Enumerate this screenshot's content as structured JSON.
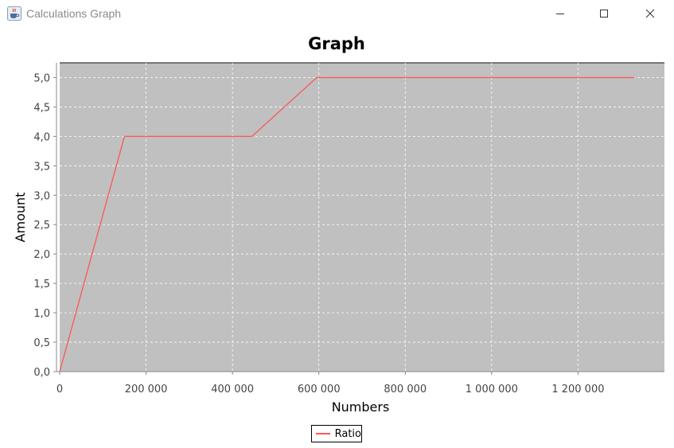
{
  "window": {
    "title": "Calculations Graph",
    "icon": "java-cup-icon",
    "controls": [
      "minimize-icon",
      "maximize-icon",
      "close-icon"
    ]
  },
  "chart_data": {
    "type": "line",
    "title": "Graph",
    "xlabel": "Numbers",
    "ylabel": "Amount",
    "xlim": [
      0,
      1400000
    ],
    "ylim": [
      0,
      5.25
    ],
    "xticks": [
      0,
      200000,
      400000,
      600000,
      800000,
      1000000,
      1200000
    ],
    "xtick_labels": [
      "0",
      "200 000",
      "400 000",
      "600 000",
      "800 000",
      "1 000 000",
      "1 200 000"
    ],
    "yticks": [
      0,
      0.5,
      1,
      1.5,
      2,
      2.5,
      3,
      3.5,
      4,
      4.5,
      5
    ],
    "ytick_labels": [
      "0,0",
      "0,5",
      "1,0",
      "1,5",
      "2,0",
      "2,5",
      "3,0",
      "3,5",
      "4,0",
      "4,5",
      "5,0"
    ],
    "grid": true,
    "legend": "bottom",
    "plot_background": "#c0c0c0",
    "series": [
      {
        "name": "Ratio",
        "color": "#ff5555",
        "x": [
          0,
          150000,
          445000,
          595000,
          1330000
        ],
        "y": [
          0,
          4,
          4,
          5,
          5
        ]
      }
    ]
  }
}
